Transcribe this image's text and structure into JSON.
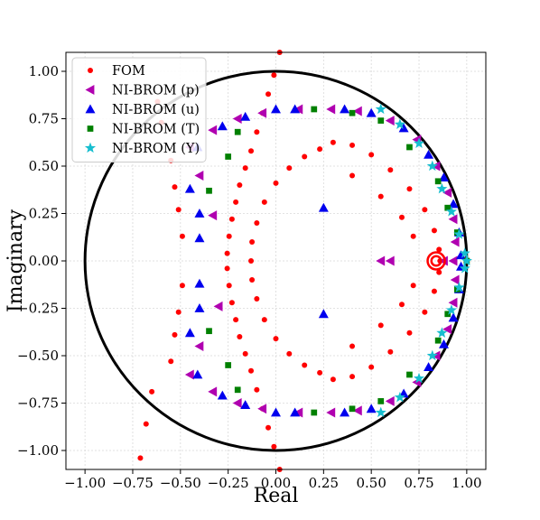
{
  "chart_data": {
    "type": "scatter",
    "xlabel": "Real",
    "ylabel": "Imaginary",
    "xlim": [
      -1.1,
      1.1
    ],
    "ylim": [
      -1.1,
      1.1
    ],
    "xticks": [
      -1.0,
      -0.75,
      -0.5,
      -0.25,
      0.0,
      0.25,
      0.5,
      0.75,
      1.0
    ],
    "yticks": [
      -1.0,
      -0.75,
      -0.5,
      -0.25,
      0.0,
      0.25,
      0.5,
      0.75,
      1.0
    ],
    "xtick_labels": [
      "−1.00",
      "−0.75",
      "−0.50",
      "−0.25",
      "0.00",
      "0.25",
      "0.50",
      "0.75",
      "1.00"
    ],
    "ytick_labels": [
      "−1.00",
      "−0.75",
      "−0.50",
      "−0.25",
      "0.00",
      "0.25",
      "0.50",
      "0.75",
      "1.00"
    ],
    "grid": true,
    "legend_position": "top-left",
    "unit_circle": {
      "center": [
        0,
        0
      ],
      "radius": 1.0,
      "color": "#000000"
    },
    "series": [
      {
        "name": "FOM",
        "marker": "circle",
        "color": "#ff0000",
        "points": [
          [
            0.23,
            0.59
          ],
          [
            0.3,
            0.625
          ],
          [
            0.4,
            0.61
          ],
          [
            0.5,
            0.56
          ],
          [
            0.6,
            0.48
          ],
          [
            0.7,
            0.38
          ],
          [
            0.78,
            0.27
          ],
          [
            0.83,
            0.16
          ],
          [
            0.855,
            0.06
          ],
          [
            0.23,
            -0.59
          ],
          [
            0.3,
            -0.625
          ],
          [
            0.4,
            -0.61
          ],
          [
            0.5,
            -0.56
          ],
          [
            0.6,
            -0.48
          ],
          [
            0.7,
            -0.38
          ],
          [
            0.78,
            -0.27
          ],
          [
            0.83,
            -0.16
          ],
          [
            0.855,
            -0.06
          ],
          [
            0.15,
            0.55
          ],
          [
            0.07,
            0.49
          ],
          [
            0.0,
            0.41
          ],
          [
            -0.06,
            0.31
          ],
          [
            -0.1,
            0.2
          ],
          [
            -0.125,
            0.1
          ],
          [
            -0.13,
            0.0
          ],
          [
            0.15,
            -0.55
          ],
          [
            0.07,
            -0.49
          ],
          [
            0.0,
            -0.41
          ],
          [
            -0.06,
            -0.31
          ],
          [
            -0.1,
            -0.2
          ],
          [
            -0.125,
            -0.1
          ],
          [
            0.02,
            1.1
          ],
          [
            -0.01,
            0.98
          ],
          [
            -0.04,
            0.88
          ],
          [
            -0.07,
            0.78
          ],
          [
            -0.1,
            0.68
          ],
          [
            -0.13,
            0.58
          ],
          [
            -0.16,
            0.49
          ],
          [
            -0.19,
            0.4
          ],
          [
            -0.21,
            0.31
          ],
          [
            -0.23,
            0.22
          ],
          [
            -0.245,
            0.13
          ],
          [
            -0.255,
            0.04
          ],
          [
            0.02,
            -1.1
          ],
          [
            -0.01,
            -0.98
          ],
          [
            -0.04,
            -0.88
          ],
          [
            -0.07,
            -0.78
          ],
          [
            -0.1,
            -0.68
          ],
          [
            -0.13,
            -0.58
          ],
          [
            -0.16,
            -0.49
          ],
          [
            -0.19,
            -0.4
          ],
          [
            -0.21,
            -0.31
          ],
          [
            -0.23,
            -0.22
          ],
          [
            -0.245,
            -0.13
          ],
          [
            -0.255,
            -0.04
          ],
          [
            0.4,
            0.45
          ],
          [
            0.55,
            0.34
          ],
          [
            0.66,
            0.23
          ],
          [
            0.72,
            0.13
          ],
          [
            0.4,
            -0.45
          ],
          [
            0.55,
            -0.34
          ],
          [
            0.66,
            -0.23
          ],
          [
            0.72,
            -0.13
          ],
          [
            -0.55,
            0.53
          ],
          [
            -0.53,
            0.39
          ],
          [
            -0.51,
            0.27
          ],
          [
            -0.49,
            0.13
          ],
          [
            -0.55,
            -0.53
          ],
          [
            -0.53,
            -0.39
          ],
          [
            -0.51,
            -0.27
          ],
          [
            -0.49,
            -0.13
          ],
          [
            -0.6,
            0.73
          ],
          [
            -0.62,
            0.84
          ],
          [
            -0.68,
            -0.86
          ],
          [
            -0.65,
            -0.69
          ],
          [
            -0.71,
            -1.04
          ],
          [
            0.86,
            0.0
          ]
        ]
      },
      {
        "name": "NI-BROM (p)",
        "marker": "triangle-left",
        "color": "#b000b0",
        "points": [
          [
            0.55,
            0.0
          ],
          [
            0.6,
            0.0
          ],
          [
            0.88,
            0.0
          ],
          [
            0.93,
            0.0
          ],
          [
            -0.45,
            0.6
          ],
          [
            -0.33,
            0.69
          ],
          [
            -0.2,
            0.75
          ],
          [
            -0.07,
            0.78
          ],
          [
            0.12,
            0.8
          ],
          [
            0.29,
            0.8
          ],
          [
            0.43,
            0.79
          ],
          [
            0.6,
            0.74
          ],
          [
            0.74,
            0.64
          ],
          [
            0.84,
            0.5
          ],
          [
            0.9,
            0.36
          ],
          [
            0.93,
            0.22
          ],
          [
            0.94,
            0.1
          ],
          [
            -0.45,
            -0.6
          ],
          [
            -0.33,
            -0.69
          ],
          [
            -0.2,
            -0.75
          ],
          [
            -0.07,
            -0.78
          ],
          [
            0.12,
            -0.8
          ],
          [
            0.29,
            -0.8
          ],
          [
            0.43,
            -0.79
          ],
          [
            0.6,
            -0.74
          ],
          [
            0.74,
            -0.64
          ],
          [
            0.84,
            -0.5
          ],
          [
            0.9,
            -0.36
          ],
          [
            0.93,
            -0.22
          ],
          [
            0.94,
            -0.1
          ],
          [
            -0.4,
            0.45
          ],
          [
            -0.4,
            -0.45
          ],
          [
            -0.33,
            0.24
          ],
          [
            -0.3,
            -0.24
          ]
        ]
      },
      {
        "name": "NI-BROM (u)",
        "marker": "triangle-up",
        "color": "#0000ee",
        "points": [
          [
            0.25,
            0.28
          ],
          [
            0.25,
            -0.28
          ],
          [
            -0.41,
            0.6
          ],
          [
            -0.28,
            0.71
          ],
          [
            -0.16,
            0.76
          ],
          [
            0.0,
            0.8
          ],
          [
            0.1,
            0.8
          ],
          [
            0.36,
            0.8
          ],
          [
            0.5,
            0.78
          ],
          [
            0.67,
            0.7
          ],
          [
            0.8,
            0.56
          ],
          [
            0.88,
            0.44
          ],
          [
            0.93,
            0.3
          ],
          [
            0.96,
            0.15
          ],
          [
            0.97,
            0.03
          ],
          [
            -0.41,
            -0.6
          ],
          [
            -0.28,
            -0.71
          ],
          [
            -0.16,
            -0.76
          ],
          [
            0.0,
            -0.8
          ],
          [
            0.1,
            -0.8
          ],
          [
            0.36,
            -0.8
          ],
          [
            0.5,
            -0.78
          ],
          [
            0.67,
            -0.7
          ],
          [
            0.8,
            -0.56
          ],
          [
            0.88,
            -0.44
          ],
          [
            0.93,
            -0.3
          ],
          [
            0.96,
            -0.15
          ],
          [
            0.97,
            -0.03
          ],
          [
            -0.45,
            0.38
          ],
          [
            -0.45,
            -0.38
          ],
          [
            -0.4,
            0.25
          ],
          [
            -0.4,
            -0.25
          ],
          [
            -0.4,
            0.12
          ],
          [
            -0.4,
            -0.12
          ]
        ]
      },
      {
        "name": "NI-BROM (T)",
        "marker": "square",
        "color": "#008000",
        "points": [
          [
            -0.25,
            0.55
          ],
          [
            -0.2,
            0.68
          ],
          [
            0.2,
            0.8
          ],
          [
            0.4,
            0.78
          ],
          [
            0.55,
            0.74
          ],
          [
            0.7,
            0.6
          ],
          [
            0.85,
            0.42
          ],
          [
            0.9,
            0.28
          ],
          [
            0.95,
            0.15
          ],
          [
            -0.25,
            -0.55
          ],
          [
            -0.2,
            -0.68
          ],
          [
            0.2,
            -0.8
          ],
          [
            0.4,
            -0.78
          ],
          [
            0.55,
            -0.74
          ],
          [
            0.7,
            -0.6
          ],
          [
            0.85,
            -0.42
          ],
          [
            0.9,
            -0.28
          ],
          [
            0.95,
            -0.15
          ],
          [
            -0.35,
            0.37
          ],
          [
            -0.35,
            -0.37
          ],
          [
            1.0,
            0.0
          ]
        ]
      },
      {
        "name": "NI-BROM (Y)",
        "marker": "star",
        "color": "#17becf",
        "points": [
          [
            0.55,
            0.8
          ],
          [
            0.65,
            0.72
          ],
          [
            0.75,
            0.62
          ],
          [
            0.82,
            0.5
          ],
          [
            0.87,
            0.38
          ],
          [
            0.92,
            0.26
          ],
          [
            0.96,
            0.14
          ],
          [
            0.99,
            0.04
          ],
          [
            0.55,
            -0.8
          ],
          [
            0.65,
            -0.72
          ],
          [
            0.75,
            -0.62
          ],
          [
            0.82,
            -0.5
          ],
          [
            0.87,
            -0.38
          ],
          [
            0.92,
            -0.26
          ],
          [
            0.96,
            -0.14
          ],
          [
            0.99,
            -0.04
          ],
          [
            1.0,
            0.0
          ]
        ]
      }
    ],
    "annotations": [
      {
        "type": "ring",
        "center": [
          0.84,
          0.0
        ],
        "radius": 0.045,
        "color": "#ff0000"
      },
      {
        "type": "ring",
        "center": [
          0.84,
          0.0
        ],
        "radius": 0.025,
        "color": "#ff0000"
      }
    ]
  }
}
